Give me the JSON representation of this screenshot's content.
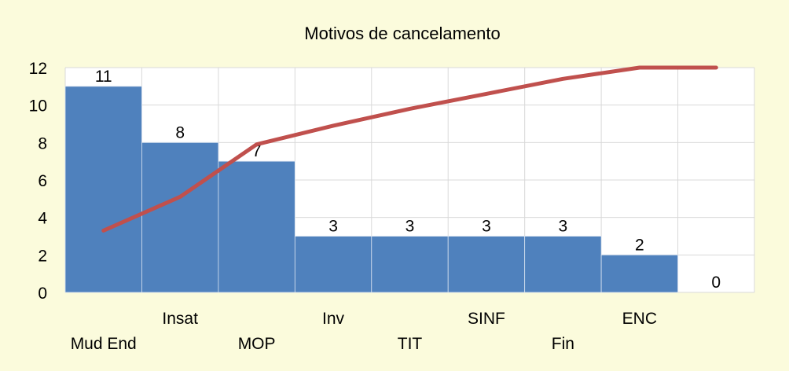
{
  "chart_data": {
    "type": "bar",
    "title": "Motivos de cancelamento",
    "categories": [
      "Mud End",
      "Insat",
      "MOP",
      "Inv",
      "TIT",
      "SINF",
      "Fin",
      "ENC",
      ""
    ],
    "series": [
      {
        "type": "bar",
        "values": [
          11,
          8,
          7,
          3,
          3,
          3,
          3,
          2,
          0
        ]
      },
      {
        "type": "line",
        "values": [
          3.3,
          5.1,
          7.9,
          8.9,
          9.8,
          10.6,
          11.4,
          12.0,
          12.0
        ]
      }
    ],
    "ylim": [
      0,
      12
    ],
    "yticks": [
      0,
      2,
      4,
      6,
      8,
      10,
      12
    ],
    "grid": true,
    "legend": "none",
    "colors": {
      "bar": "#4f81bd",
      "line": "#c0504d",
      "plot_bg": "#ffffff",
      "grid": "#d9d9d9",
      "page_bg": "#fbfbdc"
    }
  }
}
